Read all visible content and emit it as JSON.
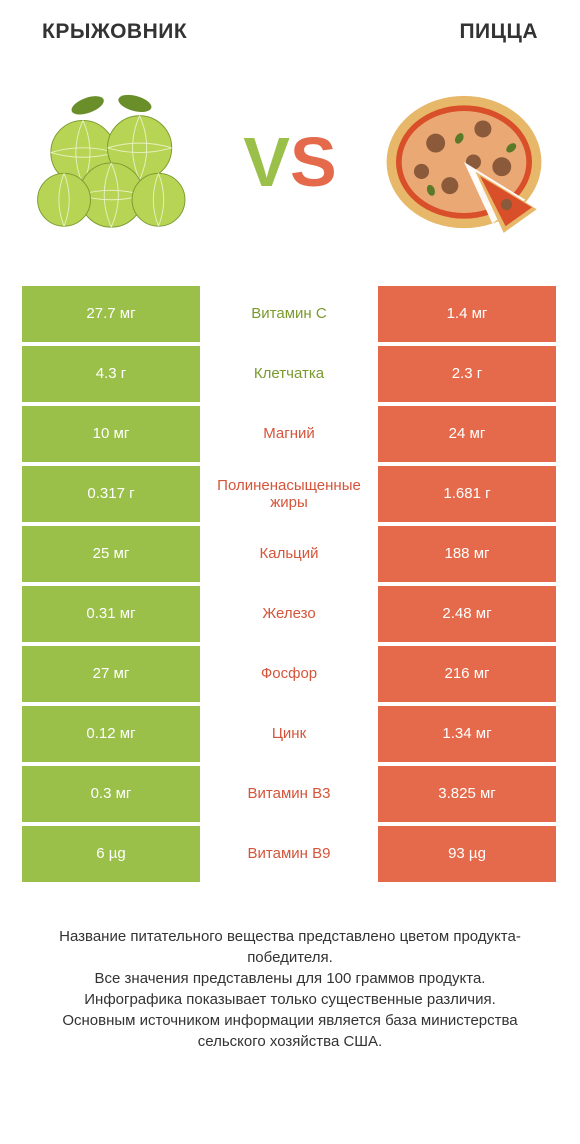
{
  "header": {
    "left_title": "КРЫЖОВНИК",
    "right_title": "ПИЦЦА"
  },
  "vs": {
    "v": "V",
    "s": "S"
  },
  "colors": {
    "green": "#9ac04a",
    "orange": "#e56a4b",
    "green_text": "#7a9a2e",
    "orange_text": "#d4553a"
  },
  "rows": [
    {
      "left": "27.7 мг",
      "mid": "Витамин C",
      "right": "1.4 мг",
      "winner": "left"
    },
    {
      "left": "4.3 г",
      "mid": "Клетчатка",
      "right": "2.3 г",
      "winner": "left"
    },
    {
      "left": "10 мг",
      "mid": "Магний",
      "right": "24 мг",
      "winner": "right"
    },
    {
      "left": "0.317 г",
      "mid": "Полиненасыщенные жиры",
      "right": "1.681 г",
      "winner": "right"
    },
    {
      "left": "25 мг",
      "mid": "Кальций",
      "right": "188 мг",
      "winner": "right"
    },
    {
      "left": "0.31 мг",
      "mid": "Железо",
      "right": "2.48 мг",
      "winner": "right"
    },
    {
      "left": "27 мг",
      "mid": "Фосфор",
      "right": "216 мг",
      "winner": "right"
    },
    {
      "left": "0.12 мг",
      "mid": "Цинк",
      "right": "1.34 мг",
      "winner": "right"
    },
    {
      "left": "0.3 мг",
      "mid": "Витамин B3",
      "right": "3.825 мг",
      "winner": "right"
    },
    {
      "left": "6 µg",
      "mid": "Витамин B9",
      "right": "93 µg",
      "winner": "right"
    }
  ],
  "footer": {
    "line1": "Название питательного вещества представлено цветом продукта-победителя.",
    "line2": "Все значения представлены для 100 граммов продукта.",
    "line3": "Инфографика показывает только существенные различия.",
    "line4": "Основным источником информации является база министерства сельского хозяйства США."
  }
}
